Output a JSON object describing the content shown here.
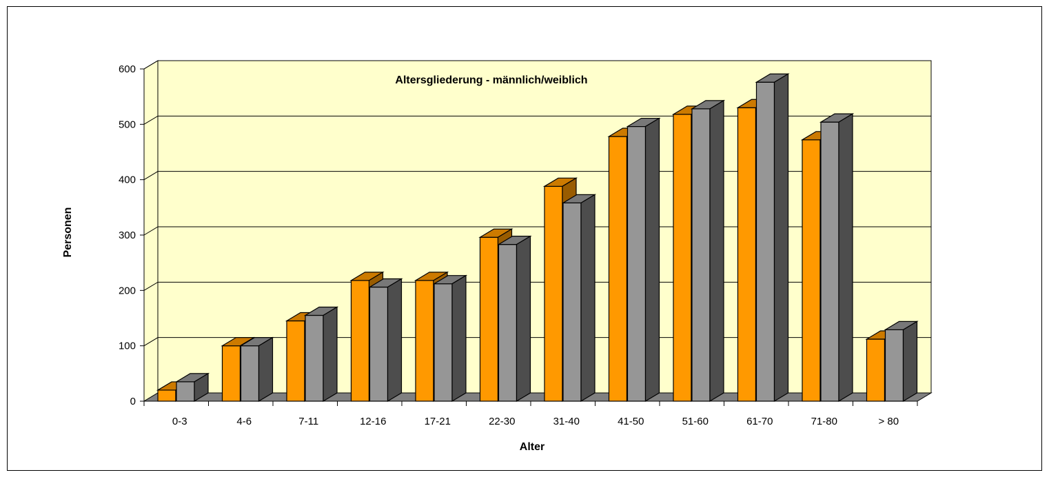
{
  "chart_data": {
    "type": "bar",
    "title": "Altersgliederung - männlich/weiblich",
    "xlabel": "Alter",
    "ylabel": "Personen",
    "categories": [
      "0-3",
      "4-6",
      "7-11",
      "12-16",
      "17-21",
      "22-30",
      "31-40",
      "41-50",
      "51-60",
      "61-70",
      "71-80",
      "> 80"
    ],
    "series": [
      {
        "values": [
          20,
          100,
          145,
          218,
          218,
          296,
          388,
          478,
          518,
          530,
          472,
          112
        ]
      },
      {
        "values": [
          35,
          100,
          155,
          206,
          212,
          283,
          358,
          496,
          528,
          576,
          504,
          129
        ]
      }
    ],
    "ylim": [
      0,
      600
    ],
    "yticks": [
      0,
      100,
      200,
      300,
      400,
      500,
      600
    ],
    "grid": true,
    "legend": "none",
    "colors": {
      "series_front": [
        "#FF9900",
        "#969696"
      ],
      "series_top": [
        "#CC7A00",
        "#787878"
      ],
      "series_side": [
        "#995C00",
        "#4D4D4D"
      ],
      "plot_background": "#FFFFCC",
      "floor": "#808080"
    }
  }
}
